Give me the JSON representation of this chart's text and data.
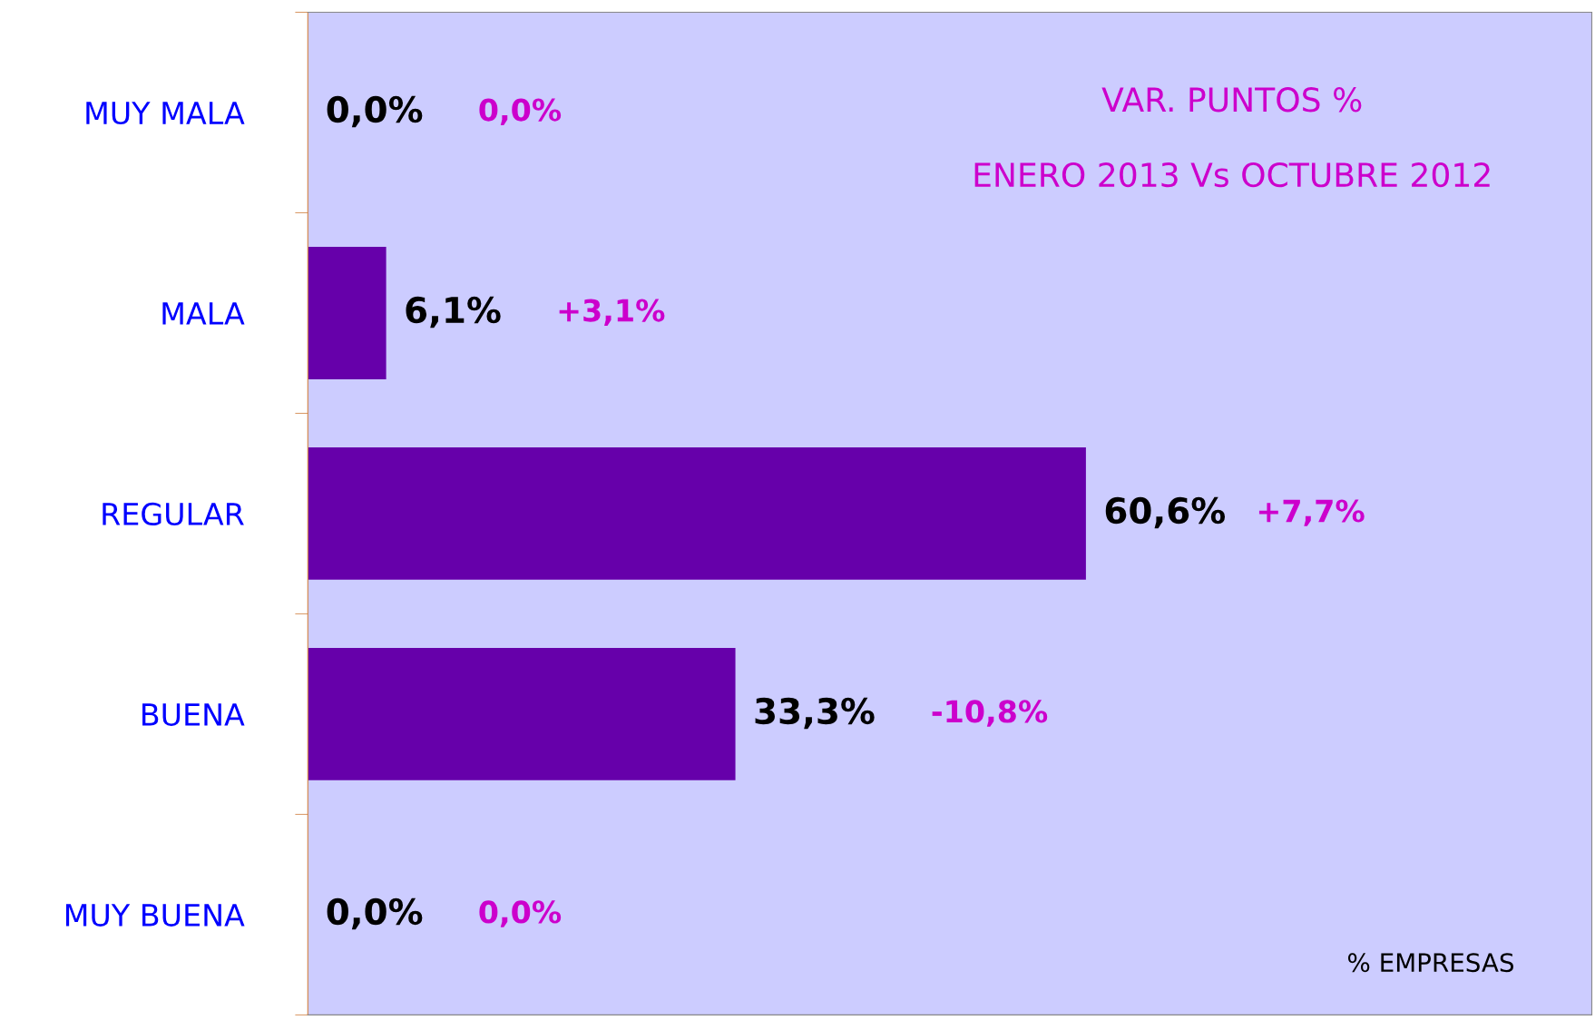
{
  "chart_data": {
    "type": "bar",
    "orientation": "horizontal",
    "title": "VAR. PUNTOS %",
    "subtitle": "ENERO 2013 Vs OCTUBRE 2012",
    "categories": [
      "MUY MALA",
      "MALA",
      "REGULAR",
      "BUENA",
      "MUY BUENA"
    ],
    "values": [
      0.0,
      6.1,
      60.6,
      33.3,
      0.0
    ],
    "color": "#6600aa",
    "value_labels": [
      "0,0%",
      "6,1%",
      "60,6%",
      "33,3%",
      "0,0%"
    ],
    "xlim": [
      0,
      100
    ],
    "tick_labels": "y",
    "grid": false,
    "legend": false,
    "annotations": [
      "0,0%",
      "+3,1%",
      "+7,7%",
      "-10,8%",
      "0,0%",
      "% EMPRESAS"
    ]
  }
}
